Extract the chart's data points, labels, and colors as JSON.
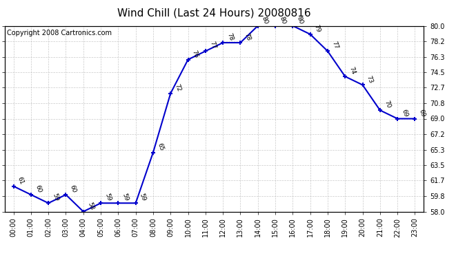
{
  "title": "Wind Chill (Last 24 Hours) 20080816",
  "copyright": "Copyright 2008 Cartronics.com",
  "hours": [
    0,
    1,
    2,
    3,
    4,
    5,
    6,
    7,
    8,
    9,
    10,
    11,
    12,
    13,
    14,
    15,
    16,
    17,
    18,
    19,
    20,
    21,
    22,
    23
  ],
  "values": [
    61,
    60,
    59,
    60,
    58,
    59,
    59,
    59,
    65,
    72,
    76,
    77,
    78,
    78,
    80,
    80,
    80,
    79,
    77,
    74,
    73,
    70,
    69,
    69
  ],
  "xlabels": [
    "00:00",
    "01:00",
    "02:00",
    "03:00",
    "04:00",
    "05:00",
    "06:00",
    "07:00",
    "08:00",
    "09:00",
    "10:00",
    "11:00",
    "12:00",
    "13:00",
    "14:00",
    "15:00",
    "16:00",
    "17:00",
    "18:00",
    "19:00",
    "20:00",
    "21:00",
    "22:00",
    "23:00"
  ],
  "ylim": [
    58.0,
    80.0
  ],
  "yticks": [
    58.0,
    59.8,
    61.7,
    63.5,
    65.3,
    67.2,
    69.0,
    70.8,
    72.7,
    74.5,
    76.3,
    78.2,
    80.0
  ],
  "ytick_labels": [
    "58.0",
    "59.8",
    "61.7",
    "63.5",
    "65.3",
    "67.2",
    "69.0",
    "70.8",
    "72.7",
    "74.5",
    "76.3",
    "78.2",
    "80.0"
  ],
  "line_color": "#0000cc",
  "marker_color": "#0000cc",
  "bg_color": "#ffffff",
  "plot_bg_color": "#ffffff",
  "grid_color": "#bbbbbb",
  "title_fontsize": 11,
  "copyright_fontsize": 7,
  "tick_fontsize": 7,
  "value_fontsize": 6.5,
  "label_rotation": -70
}
